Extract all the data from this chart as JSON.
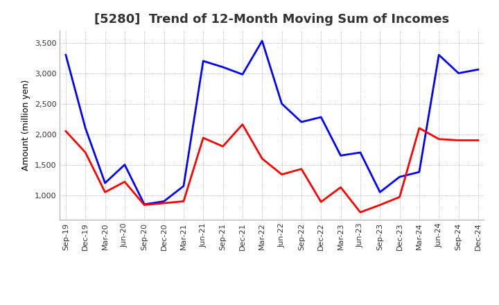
{
  "title": "[5280]  Trend of 12-Month Moving Sum of Incomes",
  "ylabel": "Amount (million yen)",
  "background_color": "#ffffff",
  "grid_color": "#999999",
  "x_labels": [
    "Sep-19",
    "Dec-19",
    "Mar-20",
    "Jun-20",
    "Sep-20",
    "Dec-20",
    "Mar-21",
    "Jun-21",
    "Sep-21",
    "Dec-21",
    "Mar-22",
    "Jun-22",
    "Sep-22",
    "Dec-22",
    "Mar-23",
    "Jun-23",
    "Sep-23",
    "Dec-23",
    "Mar-24",
    "Jun-24",
    "Sep-24",
    "Dec-24"
  ],
  "ordinary_income": [
    3300,
    2100,
    1200,
    1500,
    850,
    900,
    1150,
    3200,
    3100,
    2980,
    3530,
    2500,
    2200,
    2280,
    1650,
    1700,
    1050,
    1300,
    1380,
    3300,
    3000,
    3060
  ],
  "net_income": [
    2050,
    1700,
    1050,
    1220,
    840,
    870,
    900,
    1940,
    1800,
    2160,
    1600,
    1340,
    1430,
    890,
    1130,
    720,
    840,
    970,
    2100,
    1920,
    1900,
    1900
  ],
  "ordinary_color": "#0000ff",
  "net_color": "#ff0000",
  "ylim_min": 600,
  "ylim_max": 3700,
  "yticks": [
    1000,
    1500,
    2000,
    2500,
    3000,
    3500
  ],
  "ytick_labels": [
    "1,000",
    "1,500",
    "2,000",
    "2,500",
    "3,000",
    "3,500"
  ],
  "title_fontsize": 13,
  "axis_label_fontsize": 9,
  "tick_fontsize": 8,
  "legend_fontsize": 10,
  "line_width": 2.0
}
